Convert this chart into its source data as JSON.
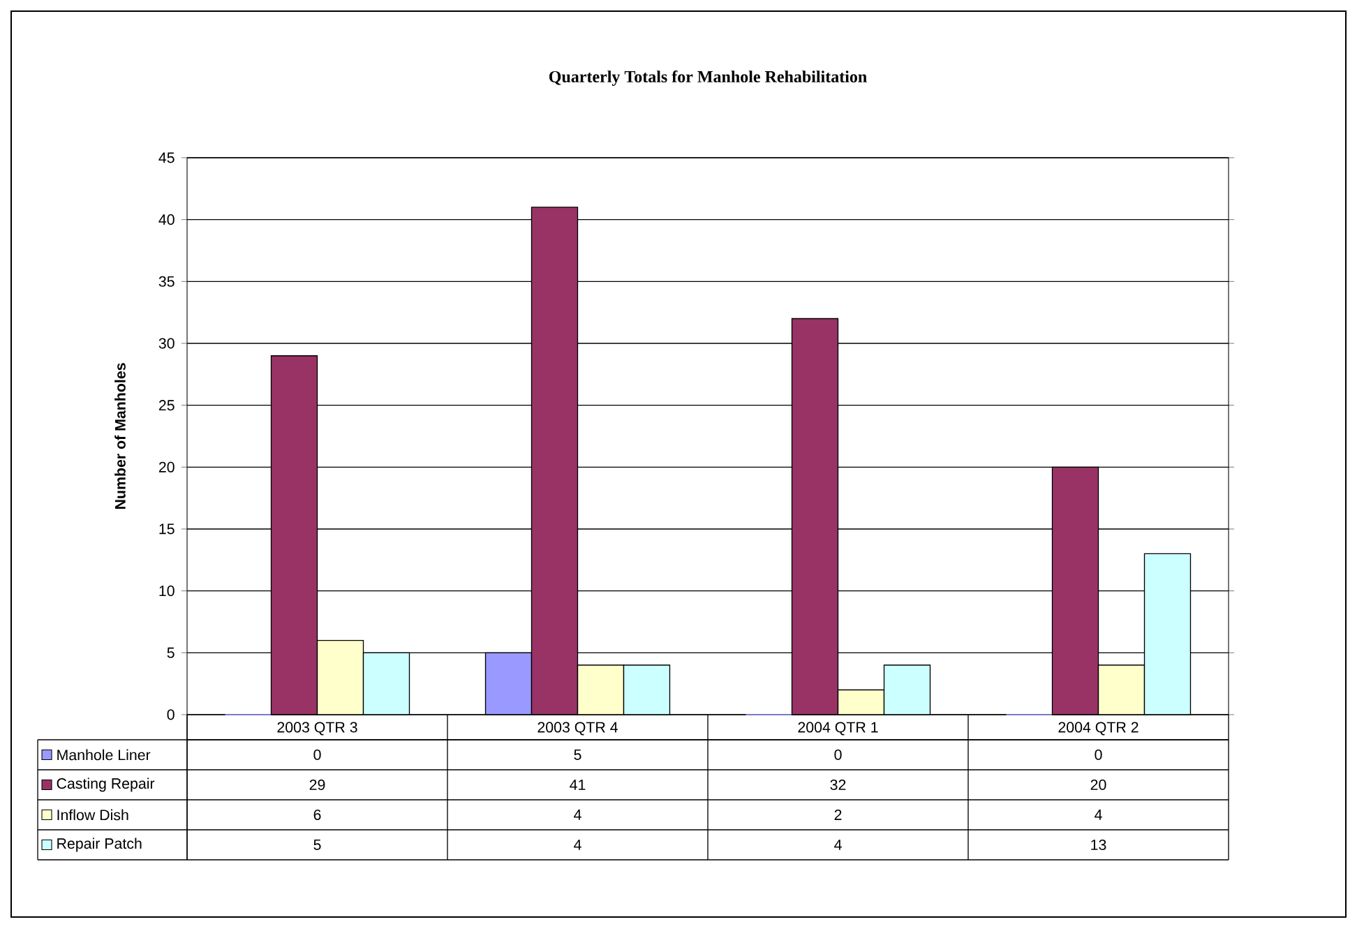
{
  "chart_data": {
    "type": "bar",
    "title": "Quarterly Totals for Manhole Rehabilitation",
    "ylabel": "Number of Manholes",
    "categories": [
      "2003 QTR 3",
      "2003 QTR 4",
      "2004 QTR 1",
      "2004 QTR 2"
    ],
    "series": [
      {
        "name": "Manhole Liner",
        "color": "#9999ff",
        "values": [
          0,
          5,
          0,
          0
        ]
      },
      {
        "name": "Casting Repair",
        "color": "#993366",
        "values": [
          29,
          41,
          32,
          20
        ]
      },
      {
        "name": "Inflow Dish",
        "color": "#ffffcc",
        "values": [
          6,
          4,
          2,
          4
        ]
      },
      {
        "name": "Repair Patch",
        "color": "#ccffff",
        "values": [
          5,
          4,
          4,
          13
        ]
      }
    ],
    "ylim": [
      0,
      45
    ],
    "yticks": [
      0,
      5,
      10,
      15,
      20,
      25,
      30,
      35,
      40,
      45
    ],
    "grid": "y",
    "legend": "bottom",
    "data_labels": true
  }
}
